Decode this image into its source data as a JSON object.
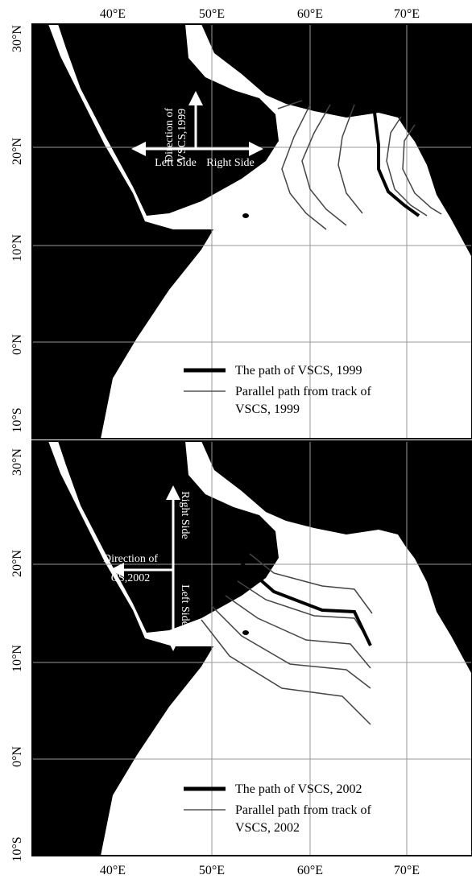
{
  "top_axis_labels": [
    "40°E",
    "50°E",
    "60°E",
    "70°E"
  ],
  "bottom_axis_labels": [
    "40°E",
    "50°E",
    "60°E",
    "70°E"
  ],
  "panels": [
    {
      "y_axis_labels": [
        "30°N",
        "20°N",
        "10°N",
        "0°N",
        "10°S"
      ],
      "direction_label": [
        "Direction of",
        "VSCS,1999"
      ],
      "side_labels": [
        "Left Side",
        "Right Side"
      ],
      "legend": [
        {
          "label": [
            "The path of VSCS, 1999"
          ]
        },
        {
          "label": [
            "Parallel path from track of",
            "VSCS, 1999"
          ]
        }
      ]
    },
    {
      "y_axis_labels": [
        "30°N",
        "20°N",
        "10°N",
        "0°N",
        "10°S"
      ],
      "direction_label": [
        "Direction of",
        "CS,2002"
      ],
      "side_labels": [
        "Right Side",
        "Left Side"
      ],
      "legend": [
        {
          "label": [
            "The path of VSCS, 2002"
          ]
        },
        {
          "label": [
            "Parallel path from track of",
            "VSCS, 2002"
          ]
        }
      ]
    }
  ]
}
